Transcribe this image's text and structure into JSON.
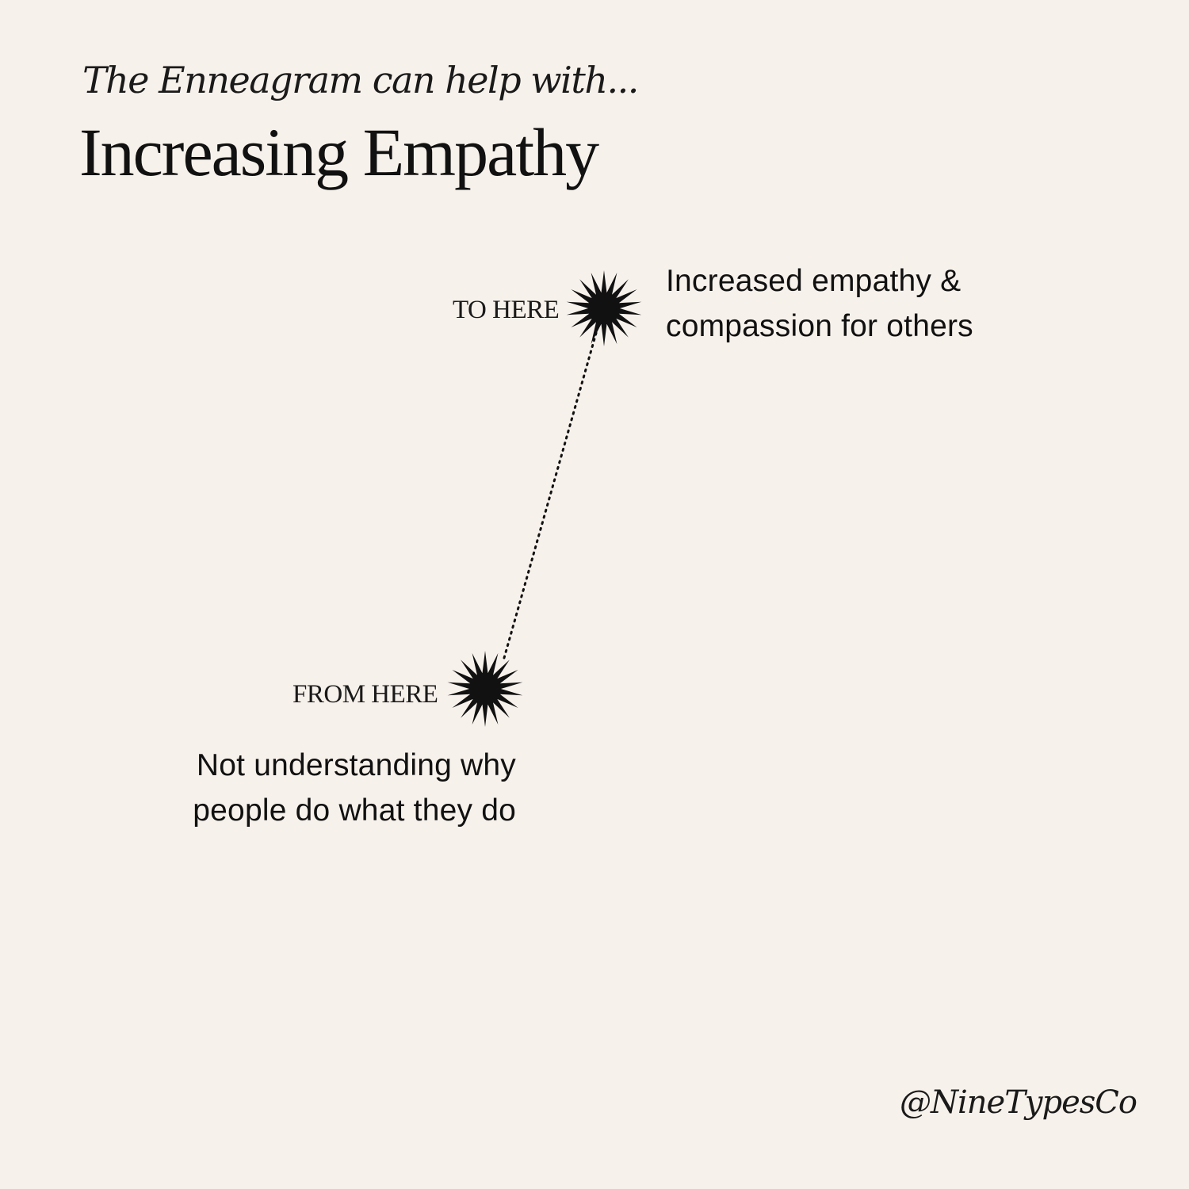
{
  "header": {
    "subtitle": "The Enneagram can help with...",
    "title": "Increasing Empathy"
  },
  "destination": {
    "marker_label": "TO HERE",
    "description_lines": [
      "Increased empathy &",
      "compassion for others"
    ],
    "icon": "starburst-icon"
  },
  "origin": {
    "marker_label": "FROM HERE",
    "description_lines": [
      "Not understanding why",
      "people do what they do"
    ],
    "icon": "starburst-icon"
  },
  "connector": {
    "style": "dotted"
  },
  "footer": {
    "handle": "@NineTypesCo"
  },
  "colors": {
    "background": "#f7f1eb",
    "ink": "#111111"
  }
}
